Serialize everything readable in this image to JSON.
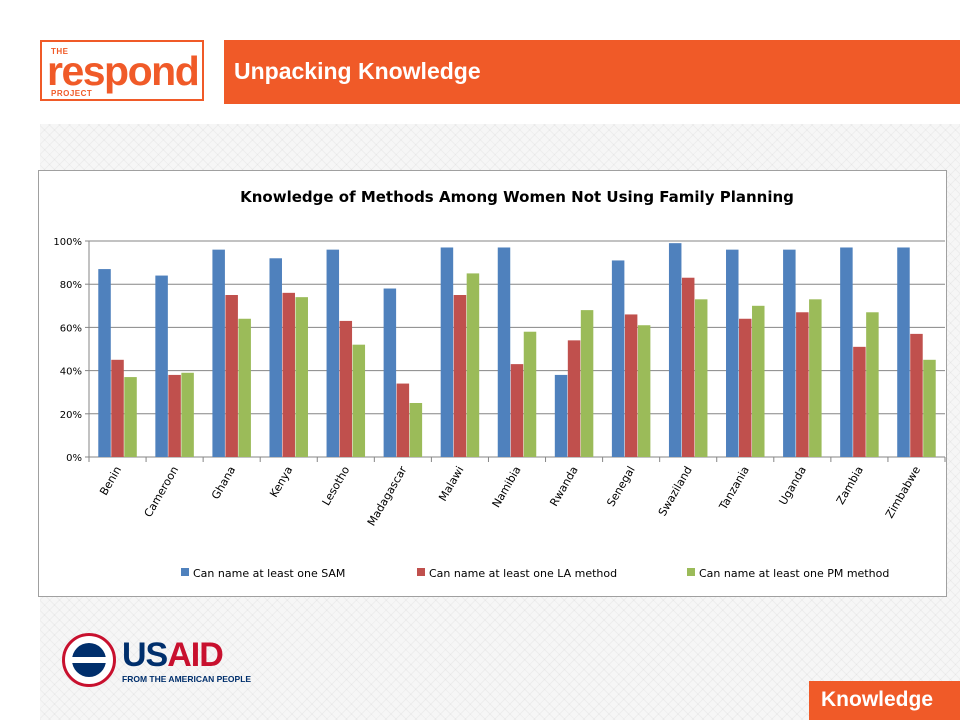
{
  "header": {
    "logo": {
      "the": "THE",
      "word": "respond",
      "project": "PROJECT"
    },
    "title": "Unpacking Knowledge"
  },
  "footer": {
    "usaid": {
      "us": "US",
      "aid": "AID",
      "tagline": "FROM THE AMERICAN PEOPLE"
    },
    "badge": "Knowledge"
  },
  "colors": {
    "accent": "#f05a28",
    "series": [
      "#4f81bd",
      "#c0504d",
      "#9bbb59"
    ]
  },
  "chart_data": {
    "type": "bar",
    "title": "Knowledge of Methods Among Women Not Using Family Planning",
    "categories": [
      "Benin",
      "Cameroon",
      "Ghana",
      "Kenya",
      "Lesotho",
      "Madagascar",
      "Malawi",
      "Namibia",
      "Rwanda",
      "Senegal",
      "Swaziland",
      "Tanzania",
      "Uganda",
      "Zambia",
      "Zimbabwe"
    ],
    "series": [
      {
        "name": "Can name at least one SAM",
        "values": [
          87,
          84,
          96,
          92,
          96,
          78,
          97,
          97,
          38,
          91,
          99,
          96,
          96,
          97,
          97
        ]
      },
      {
        "name": "Can name at least one LA method",
        "values": [
          45,
          38,
          75,
          76,
          63,
          34,
          75,
          43,
          54,
          66,
          83,
          64,
          67,
          51,
          57
        ]
      },
      {
        "name": "Can name at least one PM method",
        "values": [
          37,
          39,
          64,
          74,
          52,
          25,
          85,
          58,
          68,
          61,
          73,
          70,
          73,
          67,
          45
        ]
      }
    ],
    "yticks": [
      "0%",
      "20%",
      "40%",
      "60%",
      "80%",
      "100%"
    ],
    "ylim": [
      0,
      100
    ],
    "xlabel": "",
    "ylabel": "",
    "grid": true,
    "legend": "bottom"
  }
}
